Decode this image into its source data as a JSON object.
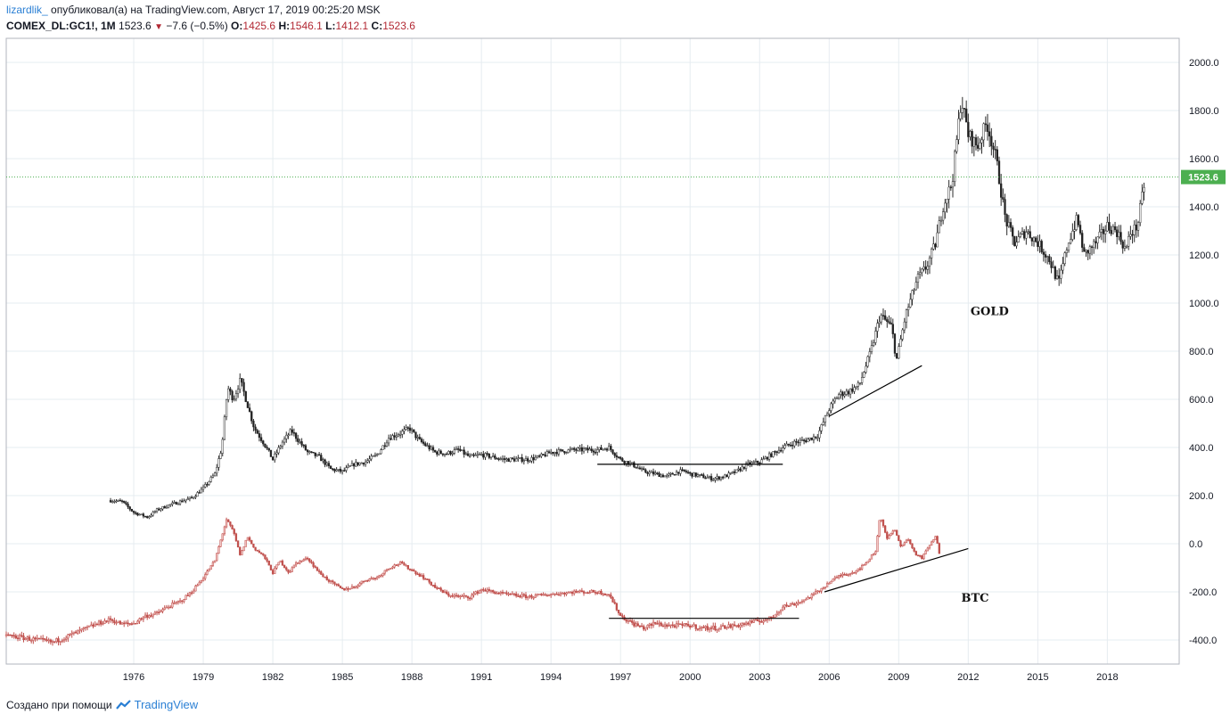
{
  "header": {
    "author": "lizardlik_",
    "published_text": "опубликовал(а) на TradingView.com, Август 17, 2019 00:25:20 MSK",
    "symbol": "COMEX_DL:GC1!, 1M",
    "last": "1523.6",
    "change": "−7.6 (−0.5%)",
    "open_label": "O:",
    "open": "1425.6",
    "high_label": "H:",
    "high": "1546.1",
    "low_label": "L:",
    "low": "1412.1",
    "close_label": "C:",
    "close": "1523.6"
  },
  "footer": {
    "created_with": "Создано при помощи",
    "brand": "TradingView"
  },
  "colors": {
    "gold": "#3f3f3f",
    "btc": "#c0504d",
    "price_tag": "#4caf50",
    "grid": "#e6ecf0",
    "axis": "#b2b5be"
  },
  "chart_data": {
    "type": "line",
    "title": "",
    "xlabel": "",
    "ylabel": "",
    "ylim": [
      -500,
      2100
    ],
    "xlim": [
      1970.5,
      2021.1
    ],
    "grid": true,
    "x_ticks": [
      "1976",
      "1979",
      "1982",
      "1985",
      "1988",
      "1991",
      "1994",
      "1997",
      "2000",
      "2003",
      "2006",
      "2009",
      "2012",
      "2015",
      "2018"
    ],
    "y_ticks": [
      "2000.0",
      "1800.0",
      "1600.0",
      "1400.0",
      "1200.0",
      "1000.0",
      "800.0",
      "600.0",
      "400.0",
      "200.0",
      "0.0",
      "-200.0",
      "-400.0"
    ],
    "current_price": 1523.6,
    "current_price_label": "1523.6",
    "series": [
      {
        "label": "GOLD",
        "style": "candles-dark",
        "x": [
          1975.0,
          1975.5,
          1976.0,
          1976.6,
          1977.0,
          1977.5,
          1978.0,
          1978.5,
          1979.0,
          1979.5,
          1979.8,
          1980.05,
          1980.3,
          1980.6,
          1980.9,
          1981.2,
          1981.6,
          1982.0,
          1982.4,
          1982.8,
          1983.1,
          1983.5,
          1984.0,
          1984.5,
          1985.0,
          1985.5,
          1986.0,
          1986.5,
          1987.0,
          1987.5,
          1987.9,
          1988.3,
          1989.0,
          1989.5,
          1990.0,
          1990.5,
          1991.0,
          1991.5,
          1992.0,
          1993.0,
          1993.5,
          1994.0,
          1995.0,
          1996.0,
          1996.5,
          1997.0,
          1997.5,
          1998.0,
          1998.5,
          1999.0,
          1999.5,
          1999.8,
          2000.0,
          2000.5,
          2001.0,
          2001.5,
          2002.0,
          2002.5,
          2003.0,
          2003.5,
          2004.0,
          2004.5,
          2005.0,
          2005.5,
          2006.0,
          2006.4,
          2006.8,
          2007.3,
          2007.8,
          2008.2,
          2008.7,
          2008.9,
          2009.3,
          2009.8,
          2010.2,
          2010.6,
          2010.9,
          2011.3,
          2011.7,
          2012.0,
          2012.4,
          2012.8,
          2013.2,
          2013.6,
          2014.0,
          2014.5,
          2015.0,
          2015.5,
          2015.9,
          2016.3,
          2016.7,
          2017.0,
          2017.5,
          2018.0,
          2018.4,
          2018.8,
          2019.0,
          2019.3,
          2019.6
        ],
        "y": [
          180,
          175,
          130,
          110,
          140,
          160,
          175,
          190,
          230,
          290,
          400,
          650,
          600,
          680,
          580,
          480,
          420,
          350,
          420,
          470,
          430,
          380,
          360,
          310,
          300,
          330,
          340,
          370,
          440,
          460,
          480,
          430,
          380,
          375,
          390,
          360,
          370,
          360,
          350,
          350,
          360,
          380,
          390,
          390,
          400,
          350,
          330,
          300,
          290,
          280,
          300,
          300,
          290,
          280,
          270,
          280,
          300,
          330,
          340,
          370,
          400,
          420,
          430,
          450,
          560,
          620,
          630,
          660,
          800,
          950,
          900,
          760,
          950,
          1100,
          1150,
          1250,
          1400,
          1500,
          1850,
          1700,
          1650,
          1750,
          1600,
          1350,
          1250,
          1300,
          1250,
          1180,
          1080,
          1250,
          1350,
          1200,
          1250,
          1320,
          1300,
          1220,
          1290,
          1320,
          1500
        ]
      },
      {
        "label": "BTC",
        "style": "candles-red",
        "x": [
          1970.5,
          1971.5,
          1972.5,
          1973.5,
          1974.5,
          1975.0,
          1975.5,
          1976.0,
          1976.5,
          1977.0,
          1977.5,
          1978.0,
          1978.5,
          1979.0,
          1979.5,
          1980.0,
          1980.3,
          1980.6,
          1980.9,
          1981.2,
          1981.6,
          1982.0,
          1982.3,
          1982.7,
          1983.0,
          1983.5,
          1984.0,
          1984.5,
          1985.0,
          1985.5,
          1986.0,
          1986.5,
          1987.0,
          1987.5,
          1988.0,
          1988.5,
          1989.0,
          1989.5,
          1990.0,
          1990.5,
          1991.0,
          1991.5,
          1992.0,
          1993.0,
          1994.0,
          1995.0,
          1996.0,
          1996.5,
          1997.0,
          1997.5,
          1998.0,
          1998.5,
          1999.0,
          2000.0,
          2000.5,
          2001.0,
          2002.0,
          2003.0,
          2003.5,
          2004.0,
          2004.5,
          2005.0,
          2005.5,
          2006.0,
          2006.5,
          2007.0,
          2007.5,
          2008.0,
          2008.2,
          2008.5,
          2008.8,
          2009.1,
          2009.4,
          2009.7,
          2010.0,
          2010.3,
          2010.6,
          2010.8
        ],
        "y": [
          -380,
          -395,
          -410,
          -370,
          -330,
          -315,
          -335,
          -330,
          -300,
          -290,
          -260,
          -240,
          -200,
          -140,
          -70,
          100,
          50,
          -50,
          30,
          -20,
          -50,
          -120,
          -70,
          -120,
          -80,
          -60,
          -120,
          -160,
          -190,
          -180,
          -150,
          -140,
          -100,
          -80,
          -110,
          -140,
          -180,
          -210,
          -220,
          -220,
          -190,
          -200,
          -210,
          -220,
          -210,
          -200,
          -200,
          -210,
          -300,
          -330,
          -350,
          -330,
          -340,
          -340,
          -350,
          -350,
          -340,
          -320,
          -310,
          -260,
          -250,
          -230,
          -200,
          -160,
          -130,
          -120,
          -90,
          -30,
          120,
          20,
          60,
          -10,
          20,
          -40,
          -60,
          -10,
          30,
          -60
        ]
      }
    ],
    "trendlines": [
      {
        "series": "GOLD",
        "x": [
          1996.0,
          2004.0
        ],
        "y": [
          330,
          330
        ]
      },
      {
        "series": "GOLD",
        "x": [
          2006.0,
          2010.0
        ],
        "y": [
          530,
          740
        ]
      },
      {
        "series": "BTC",
        "x": [
          1996.5,
          2004.7
        ],
        "y": [
          -310,
          -310
        ]
      },
      {
        "series": "BTC",
        "x": [
          2005.8,
          2012.0
        ],
        "y": [
          -200,
          -20
        ]
      }
    ],
    "annotations": [
      {
        "text": "GOLD",
        "x": 2012.1,
        "y": 950
      },
      {
        "text": "BTC",
        "x": 2011.7,
        "y": -240
      }
    ]
  }
}
